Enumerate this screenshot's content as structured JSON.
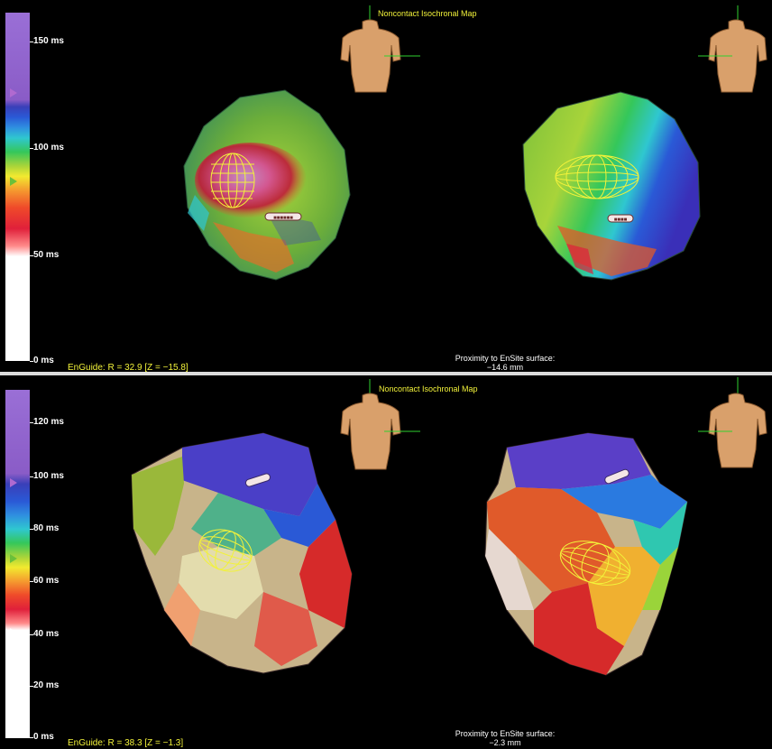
{
  "top_panel": {
    "title": "Noncontact Isochronal Map",
    "scale_labels": [
      "150 ms",
      "100 ms",
      "50 ms",
      "0 ms"
    ],
    "enguide": "EnGuide: R = 32.9  [Z = −15.8]",
    "proximity_label": "Proximity to EnSite surface:",
    "proximity_value": "−14.6 mm"
  },
  "bottom_panel": {
    "title": "Noncontact Isochronal Map",
    "scale_labels": [
      "120 ms",
      "100 ms",
      "80 ms",
      "60 ms",
      "40 ms",
      "20 ms",
      "0 ms"
    ],
    "enguide": "EnGuide: R = 38.3  [Z = −1.3]",
    "proximity_label": "Proximity to EnSite surface:",
    "proximity_value": "−2.3 mm"
  },
  "colors": {
    "late_activation": "#8a5cc7",
    "early_activation": "#ffffff",
    "crosshair": "#2fd12f",
    "torso": "#d9a06b",
    "annotation": "#f2f23a"
  },
  "icons": [
    "torso-icon",
    "balloon-catheter-icon",
    "electrode-label-icon"
  ]
}
